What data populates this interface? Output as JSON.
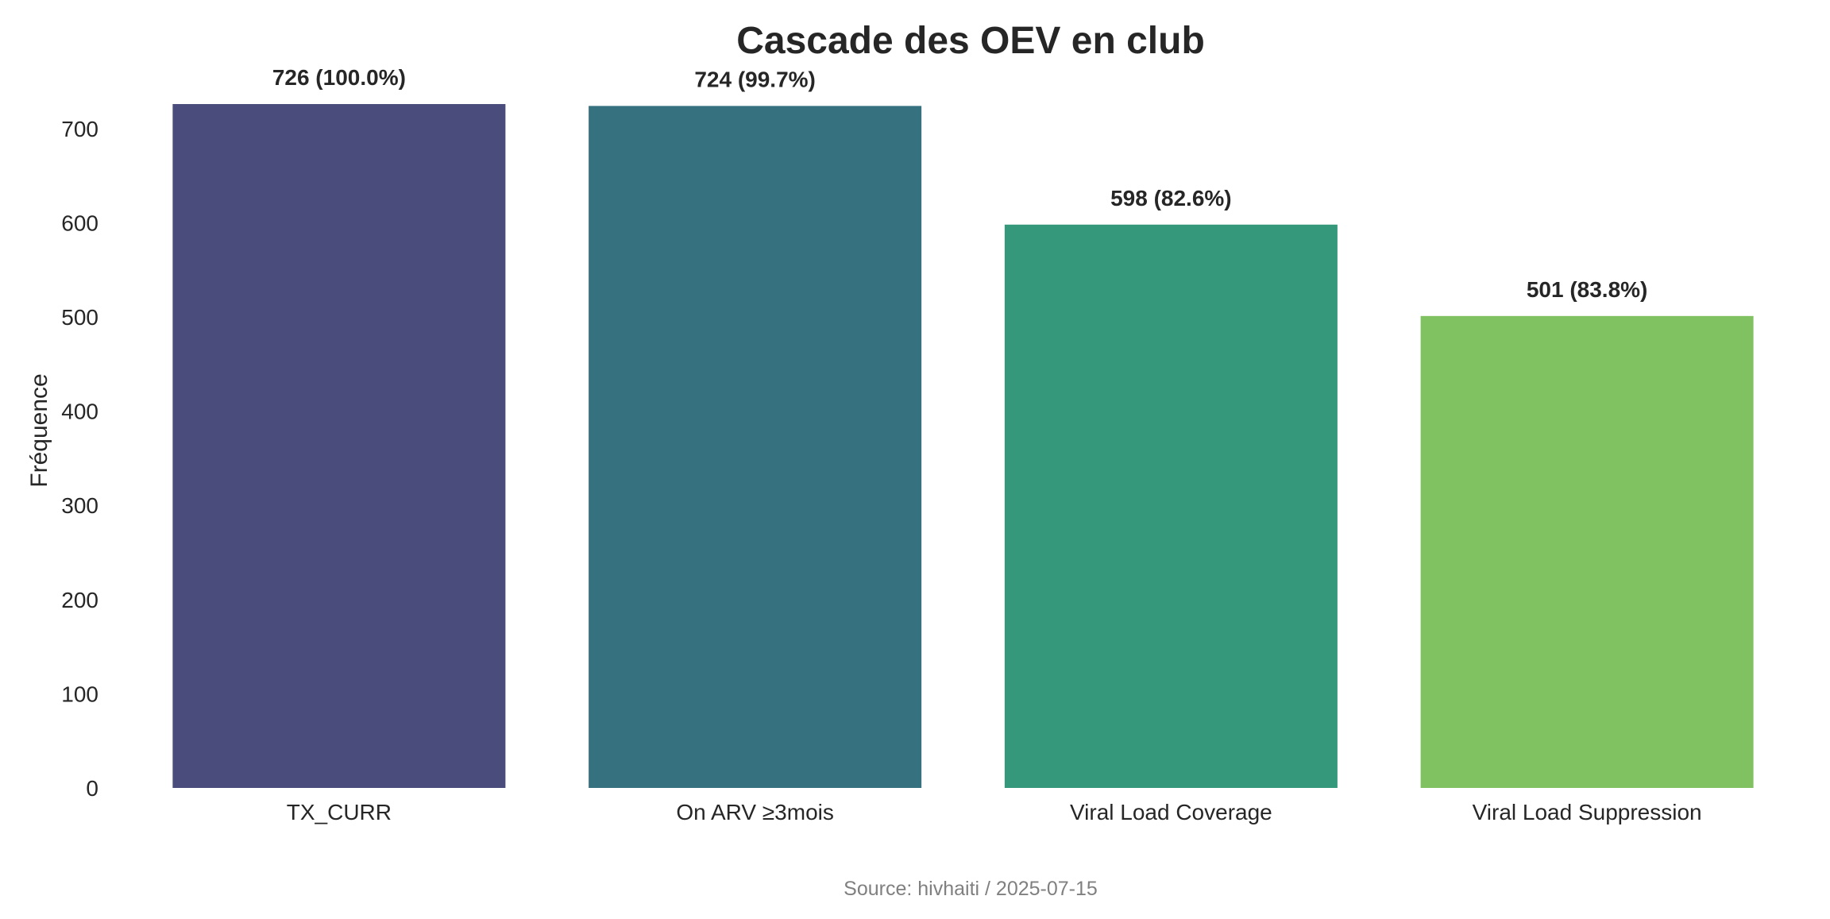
{
  "chart_data": {
    "type": "bar",
    "title": "Cascade des OEV en club",
    "xlabel": "",
    "ylabel": "Fréquence",
    "categories": [
      "TX_CURR",
      "On ARV ≥3mois",
      "Viral Load Coverage",
      "Viral Load Suppression"
    ],
    "values": [
      726,
      724,
      598,
      501
    ],
    "data_labels": [
      "726 (100.0%)",
      "724 (99.7%)",
      "598 (82.6%)",
      "501 (83.8%)"
    ],
    "colors": [
      "#4a4c7c",
      "#367180",
      "#35987b",
      "#80c261"
    ],
    "yticks": [
      0,
      100,
      200,
      300,
      400,
      500,
      600,
      700
    ],
    "ylim": [
      0,
      726
    ],
    "grid": false,
    "legend": "none"
  },
  "footer": {
    "source": "Source: hivhaiti / 2025-07-15"
  }
}
